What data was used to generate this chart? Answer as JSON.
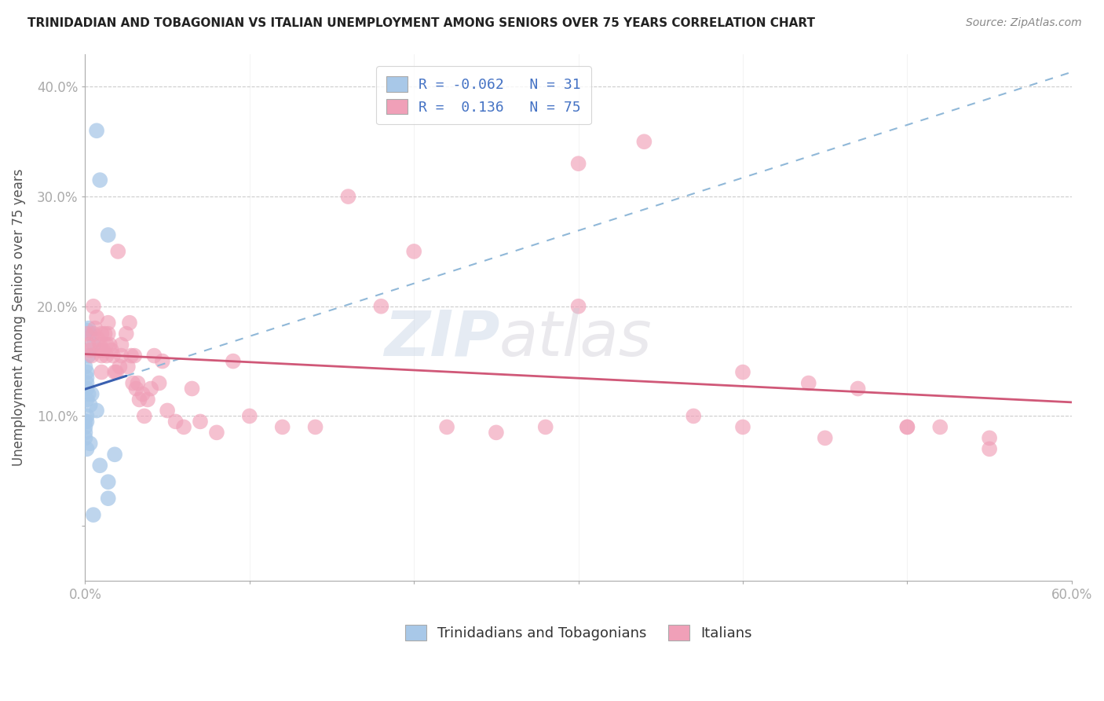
{
  "title": "TRINIDADIAN AND TOBAGONIAN VS ITALIAN UNEMPLOYMENT AMONG SENIORS OVER 75 YEARS CORRELATION CHART",
  "source": "Source: ZipAtlas.com",
  "ylabel": "Unemployment Among Seniors over 75 years",
  "xlim": [
    0.0,
    0.6
  ],
  "ylim": [
    -0.05,
    0.43
  ],
  "yticks": [
    0.0,
    0.1,
    0.2,
    0.3,
    0.4
  ],
  "ytick_labels": [
    "",
    "10.0%",
    "20.0%",
    "30.0%",
    "40.0%"
  ],
  "xticks": [
    0.0,
    0.1,
    0.2,
    0.3,
    0.4,
    0.5,
    0.6
  ],
  "xtick_labels": [
    "0.0%",
    "",
    "",
    "",
    "",
    "",
    "60.0%"
  ],
  "blue_R": "-0.062",
  "blue_N": "31",
  "pink_R": "0.136",
  "pink_N": "75",
  "blue_color": "#a8c8e8",
  "pink_color": "#f0a0b8",
  "blue_line_color": "#3a60b0",
  "pink_line_color": "#d05878",
  "blue_dashed_color": "#90b8d8",
  "blue_scatter_x": [
    0.007,
    0.009,
    0.014,
    0.001,
    0.003,
    0.005,
    0.002,
    0.0,
    0.001,
    0.001,
    0.001,
    0.001,
    0.002,
    0.004,
    0.001,
    0.003,
    0.007,
    0.002,
    0.001,
    0.001,
    0.0,
    0.0,
    0.0,
    0.0,
    0.003,
    0.001,
    0.018,
    0.009,
    0.014,
    0.014,
    0.005
  ],
  "blue_scatter_y": [
    0.36,
    0.315,
    0.265,
    0.178,
    0.175,
    0.165,
    0.155,
    0.145,
    0.14,
    0.135,
    0.13,
    0.125,
    0.12,
    0.12,
    0.115,
    0.11,
    0.105,
    0.18,
    0.1,
    0.095,
    0.095,
    0.09,
    0.085,
    0.08,
    0.075,
    0.07,
    0.065,
    0.055,
    0.04,
    0.025,
    0.01
  ],
  "pink_scatter_x": [
    0.001,
    0.002,
    0.003,
    0.004,
    0.005,
    0.005,
    0.006,
    0.007,
    0.008,
    0.009,
    0.009,
    0.01,
    0.01,
    0.01,
    0.011,
    0.012,
    0.013,
    0.013,
    0.014,
    0.014,
    0.015,
    0.016,
    0.017,
    0.018,
    0.019,
    0.02,
    0.021,
    0.022,
    0.022,
    0.025,
    0.026,
    0.027,
    0.028,
    0.029,
    0.03,
    0.031,
    0.032,
    0.033,
    0.035,
    0.036,
    0.038,
    0.04,
    0.042,
    0.045,
    0.047,
    0.05,
    0.055,
    0.06,
    0.065,
    0.07,
    0.08,
    0.09,
    0.1,
    0.12,
    0.14,
    0.16,
    0.18,
    0.2,
    0.22,
    0.25,
    0.28,
    0.3,
    0.34,
    0.37,
    0.4,
    0.44,
    0.47,
    0.5,
    0.52,
    0.55,
    0.4,
    0.45,
    0.5,
    0.55,
    0.3
  ],
  "pink_scatter_y": [
    0.175,
    0.165,
    0.16,
    0.155,
    0.2,
    0.175,
    0.18,
    0.19,
    0.17,
    0.165,
    0.16,
    0.175,
    0.155,
    0.14,
    0.16,
    0.175,
    0.165,
    0.155,
    0.185,
    0.175,
    0.165,
    0.16,
    0.155,
    0.14,
    0.14,
    0.25,
    0.145,
    0.165,
    0.155,
    0.175,
    0.145,
    0.185,
    0.155,
    0.13,
    0.155,
    0.125,
    0.13,
    0.115,
    0.12,
    0.1,
    0.115,
    0.125,
    0.155,
    0.13,
    0.15,
    0.105,
    0.095,
    0.09,
    0.125,
    0.095,
    0.085,
    0.15,
    0.1,
    0.09,
    0.09,
    0.3,
    0.2,
    0.25,
    0.09,
    0.085,
    0.09,
    0.33,
    0.35,
    0.1,
    0.09,
    0.13,
    0.125,
    0.09,
    0.09,
    0.08,
    0.14,
    0.08,
    0.09,
    0.07,
    0.2
  ],
  "legend_label_blue": "Trinidadians and Tobagonians",
  "legend_label_pink": "Italians"
}
